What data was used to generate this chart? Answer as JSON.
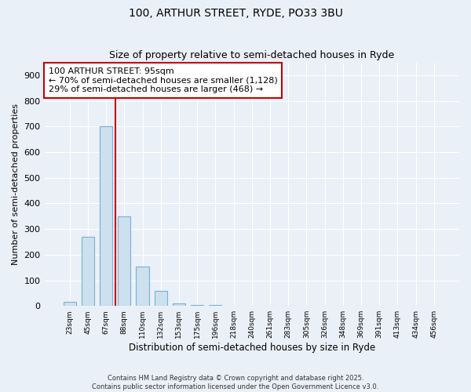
{
  "title": "100, ARTHUR STREET, RYDE, PO33 3BU",
  "subtitle": "Size of property relative to semi-detached houses in Ryde",
  "xlabel": "Distribution of semi-detached houses by size in Ryde",
  "ylabel": "Number of semi-detached properties",
  "bins": [
    "23sqm",
    "45sqm",
    "67sqm",
    "88sqm",
    "110sqm",
    "132sqm",
    "153sqm",
    "175sqm",
    "196sqm",
    "218sqm",
    "240sqm",
    "261sqm",
    "283sqm",
    "305sqm",
    "326sqm",
    "348sqm",
    "369sqm",
    "391sqm",
    "413sqm",
    "434sqm",
    "456sqm"
  ],
  "values": [
    15,
    270,
    700,
    350,
    155,
    60,
    10,
    5,
    3,
    2,
    1,
    1,
    0,
    0,
    0,
    0,
    0,
    0,
    0,
    0,
    0
  ],
  "bar_color": "#cce0f0",
  "bar_edge_color": "#7ab0d0",
  "vline_color": "#cc0000",
  "vline_pos": 2.5,
  "annotation_text": "100 ARTHUR STREET: 95sqm\n← 70% of semi-detached houses are smaller (1,128)\n29% of semi-detached houses are larger (468) →",
  "annotation_box_color": "#ffffff",
  "annotation_box_edge": "#cc0000",
  "ylim": [
    0,
    950
  ],
  "yticks": [
    0,
    100,
    200,
    300,
    400,
    500,
    600,
    700,
    800,
    900
  ],
  "background_color": "#eaf0f8",
  "grid_color": "#ffffff",
  "footer": "Contains HM Land Registry data © Crown copyright and database right 2025.\nContains public sector information licensed under the Open Government Licence v3.0.",
  "title_fontsize": 10,
  "subtitle_fontsize": 9,
  "bar_width": 0.7
}
